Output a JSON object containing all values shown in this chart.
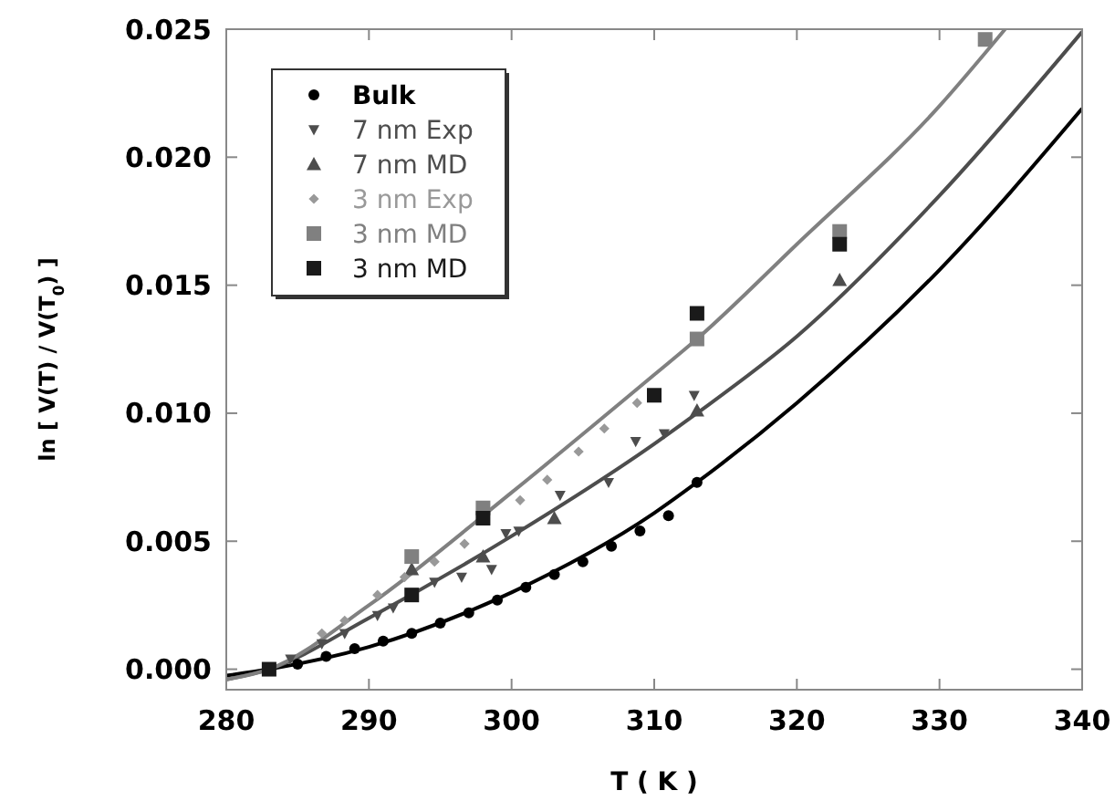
{
  "chart_data": {
    "type": "line",
    "xlabel": "T ( K )",
    "ylabel": "ln [ V(T) / V(T$_{0}$) ]",
    "xlim": [
      280,
      340
    ],
    "ylim": [
      -0.0008,
      0.025
    ],
    "xticks": [
      280,
      290,
      300,
      310,
      320,
      330,
      340
    ],
    "yticks": [
      {
        "value": 0,
        "label": "0.000"
      },
      {
        "value": 0.005,
        "label": "0.005"
      },
      {
        "value": 0.01,
        "label": "0.010"
      },
      {
        "value": 0.015,
        "label": "0.015"
      },
      {
        "value": 0.02,
        "label": "0.020"
      },
      {
        "value": 0.025,
        "label": "0.025"
      }
    ],
    "legend": "top left",
    "grid": false,
    "line_style": "solid",
    "series": [
      {
        "name": "Bulk",
        "type": "scatter",
        "marker": "circle",
        "color": "#000000",
        "x": [
          285,
          287,
          289,
          291,
          293,
          295,
          297,
          299,
          301,
          303,
          305,
          307,
          309,
          311,
          313
        ],
        "values": [
          0.0002,
          0.0005,
          0.0008,
          0.0011,
          0.0014,
          0.0018,
          0.0022,
          0.0027,
          0.0032,
          0.0037,
          0.0042,
          0.0048,
          0.0054,
          0.006,
          0.0073
        ]
      },
      {
        "name": "7 nm Exp",
        "type": "scatter",
        "marker": "triangle-down",
        "color": "#4d4d4d",
        "x": [
          284.5,
          286.7,
          288.3,
          290.6,
          291.7,
          294.6,
          296.5,
          298.6,
          299.6,
          300.5,
          303.4,
          306.8,
          308.7,
          310.7,
          312.8
        ],
        "values": [
          0.0004,
          0.001,
          0.0014,
          0.0021,
          0.0024,
          0.0034,
          0.0036,
          0.0039,
          0.0053,
          0.0054,
          0.0068,
          0.0073,
          0.0089,
          0.0092,
          0.0107
        ]
      },
      {
        "name": "7 nm MD",
        "type": "scatter",
        "marker": "triangle",
        "color": "#4d4d4d",
        "x": [
          293,
          298,
          303,
          313,
          323
        ],
        "values": [
          0.0039,
          0.0044,
          0.0059,
          0.0101,
          0.0152
        ]
      },
      {
        "name": "3 nm Exp",
        "type": "scatter",
        "marker": "diamond",
        "color": "#999999",
        "x": [
          286.7,
          288.3,
          290.6,
          292.5,
          294.6,
          296.7,
          300.6,
          302.5,
          304.7,
          306.5,
          308.8
        ],
        "values": [
          0.0014,
          0.0019,
          0.0029,
          0.0036,
          0.0042,
          0.0049,
          0.0066,
          0.0074,
          0.0085,
          0.0094,
          0.0104
        ]
      },
      {
        "name": "3 nm MD",
        "type": "scatter",
        "marker": "square",
        "color": "#808080",
        "x": [
          293,
          298,
          313,
          323,
          333.2
        ],
        "values": [
          0.0044,
          0.0063,
          0.0129,
          0.0171,
          0.0246
        ]
      },
      {
        "name": "3 nm MD",
        "type": "scatter",
        "marker": "square",
        "color": "#1a1a1a",
        "x": [
          283,
          293,
          298,
          310,
          313,
          323
        ],
        "values": [
          0,
          0.0029,
          0.0059,
          0.0107,
          0.0139,
          0.0166
        ]
      },
      {
        "type": "line",
        "marker": "none",
        "color": "#000000",
        "x": [
          280,
          283,
          290,
          300,
          310,
          313,
          320,
          330,
          340
        ],
        "values": [
          -0.00025,
          0,
          0.00087,
          0.003,
          0.0061,
          0.0073,
          0.0104,
          0.0156,
          0.0219
        ]
      },
      {
        "type": "line",
        "marker": "none",
        "color": "#4d4d4d",
        "x": [
          280,
          283,
          290,
          300,
          310,
          313,
          320,
          330,
          340
        ],
        "values": [
          -0.0004,
          0,
          0.002,
          0.0052,
          0.0088,
          0.01,
          0.013,
          0.0185,
          0.0249
        ]
      },
      {
        "type": "line",
        "marker": "none",
        "color": "#808080",
        "x": [
          280,
          283,
          290,
          300,
          310,
          313,
          320,
          330,
          334.6
        ],
        "values": [
          -0.0004,
          0,
          0.0025,
          0.0069,
          0.0115,
          0.0129,
          0.0166,
          0.022,
          0.025
        ]
      }
    ]
  }
}
